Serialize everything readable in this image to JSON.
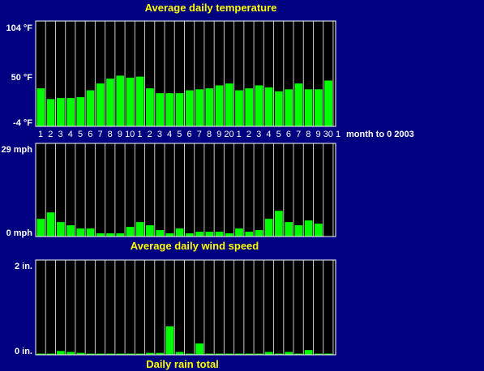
{
  "colors": {
    "background": "#000080",
    "plot_background": "#000000",
    "bar": "#00ff00",
    "title_text": "#ffff00",
    "axis_text": "#ffffff",
    "frame": "#ffffff",
    "grid": "#c8c8c8"
  },
  "chart_data": [
    {
      "type": "bar",
      "title": "Average daily temperature",
      "ylim": [
        -4,
        104
      ],
      "ytick_labels": [
        "104 °F",
        "50 °F",
        "-4 °F"
      ],
      "ytick_values": [
        104,
        50,
        -4
      ],
      "categories": [
        "1",
        "2",
        "3",
        "4",
        "5",
        "6",
        "7",
        "8",
        "9",
        "10",
        "1",
        "2",
        "3",
        "4",
        "5",
        "6",
        "7",
        "8",
        "9",
        "20",
        "1",
        "2",
        "3",
        "4",
        "5",
        "6",
        "7",
        "8",
        "9",
        "30",
        "1"
      ],
      "xlabel": "month to 0 2003",
      "values": [
        35,
        24,
        25,
        25,
        26,
        33,
        40,
        45,
        48,
        46,
        47,
        35,
        30,
        30,
        30,
        33,
        34,
        35,
        38,
        40,
        33,
        35,
        38,
        36,
        32,
        34,
        40,
        34,
        34,
        43,
        null
      ],
      "grid": "vertical"
    },
    {
      "type": "bar",
      "title": "Average daily wind speed",
      "ylim": [
        0,
        29
      ],
      "ytick_labels": [
        "29 mph",
        "0 mph"
      ],
      "ytick_values": [
        29,
        0
      ],
      "values": [
        5.5,
        7.5,
        4.5,
        3.5,
        2.5,
        2.5,
        1,
        1,
        1,
        3,
        4.5,
        3.5,
        2,
        1,
        2.5,
        1,
        1.5,
        1.5,
        1.5,
        1,
        2.5,
        1.5,
        2,
        5.5,
        8,
        4.5,
        3.5,
        5,
        4,
        null,
        null
      ],
      "grid": "vertical"
    },
    {
      "type": "bar",
      "title": "Daily rain total",
      "ylim": [
        0,
        2
      ],
      "ytick_labels": [
        "2 in.",
        "0 in."
      ],
      "ytick_values": [
        2,
        0
      ],
      "values": [
        0,
        0.02,
        0.08,
        0.06,
        0.04,
        0,
        0,
        0,
        0,
        0,
        0,
        0.04,
        0.04,
        0.6,
        0.06,
        0,
        0.24,
        0.02,
        0,
        0.02,
        0,
        0,
        0,
        0.06,
        0,
        0.06,
        0,
        0.1,
        0,
        0,
        null
      ],
      "grid": "vertical"
    }
  ]
}
